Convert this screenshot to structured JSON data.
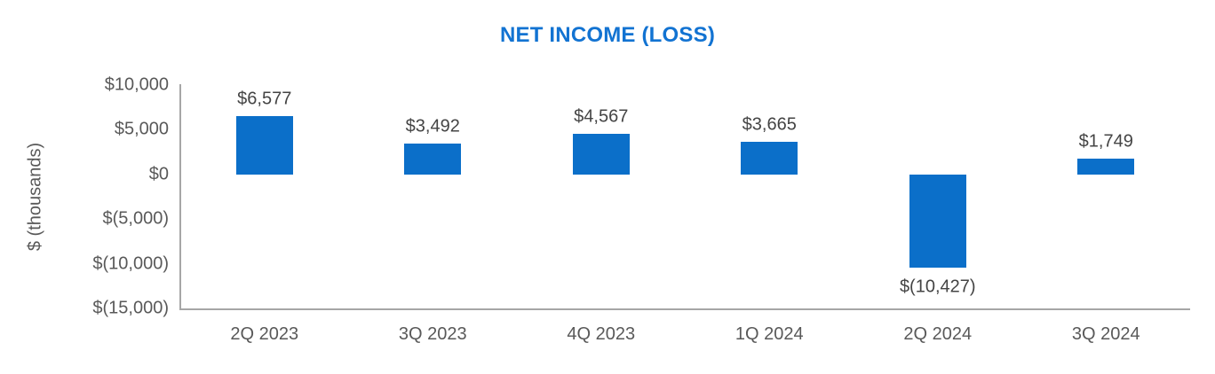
{
  "title": "NET INCOME (LOSS)",
  "colors": {
    "title": "#1273d2",
    "bar": "#0b6fc9",
    "axis_text": "#595959",
    "data_label": "#444444",
    "axis_line": "#a6a6a6",
    "background": "#ffffff"
  },
  "chart_data": {
    "type": "bar",
    "title": "NET INCOME (LOSS)",
    "xlabel": "",
    "ylabel": "$ (thousands)",
    "categories": [
      "2Q 2023",
      "3Q 2023",
      "4Q 2023",
      "1Q 2024",
      "2Q 2024",
      "3Q 2024"
    ],
    "values": [
      6577,
      3492,
      4567,
      3665,
      -10427,
      1749
    ],
    "data_labels": [
      "$6,577",
      "$3,492",
      "$4,567",
      "$3,665",
      "$(10,427)",
      "$1,749"
    ],
    "ylim": [
      -15000,
      10000
    ],
    "ytick_interval": 5000,
    "yticks": [
      10000,
      5000,
      0,
      -5000,
      -10000,
      -15000
    ],
    "ytick_labels": [
      "$10,000",
      "$5,000",
      "$0",
      "$(5,000)",
      "$(10,000)",
      "$(15,000)"
    ],
    "grid": false,
    "legend": false
  }
}
